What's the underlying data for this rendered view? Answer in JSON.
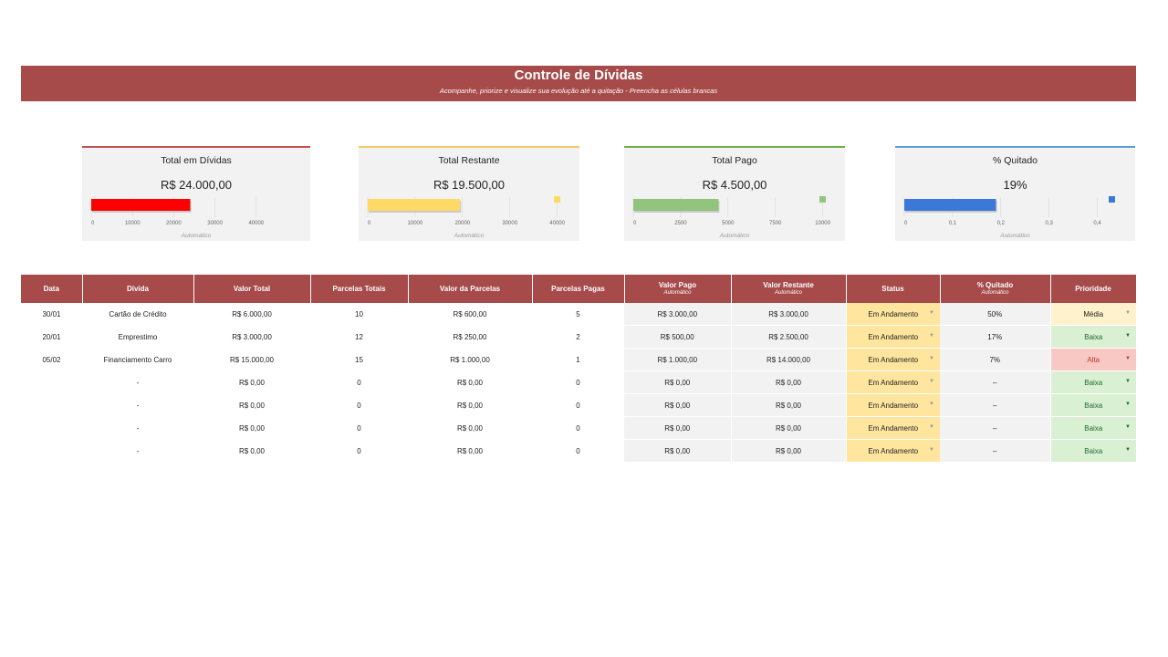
{
  "header": {
    "title": "Controle de Dívidas",
    "subtitle": "Acompanhe, priorize e visualize sua evolução até a quitação - Preencha as células brancas"
  },
  "cards": [
    {
      "title": "Total em Dívidas",
      "value": "R$ 24.000,00",
      "accent": "#c0504d",
      "bar_color": "#ff0000",
      "ticks": [
        "0",
        "10000",
        "20000",
        "30000",
        "40000"
      ],
      "axis_max": 50000,
      "bar_value": 24000,
      "legend_marker": false,
      "foot": "Automático"
    },
    {
      "title": "Total Restante",
      "value": "R$ 19.500,00",
      "accent": "#f5c76b",
      "bar_color": "#ffd966",
      "ticks": [
        "0",
        "10000",
        "20000",
        "30000",
        "40000"
      ],
      "axis_max": 42000,
      "bar_value": 19500,
      "legend_marker": true,
      "foot": "Automático"
    },
    {
      "title": "Total Pago",
      "value": "R$ 4.500,00",
      "accent": "#70ad47",
      "bar_color": "#93c47d",
      "ticks": [
        "0",
        "2500",
        "5000",
        "7500",
        "10000"
      ],
      "axis_max": 10500,
      "bar_value": 4500,
      "legend_marker": true,
      "foot": "Automático"
    },
    {
      "title": "% Quitado",
      "value": "19%",
      "accent": "#5b9bd5",
      "bar_color": "#3c78d8",
      "ticks": [
        "0",
        "0,1",
        "0,2",
        "0,3",
        "0,4"
      ],
      "axis_max": 0.45,
      "bar_value": 0.19,
      "legend_marker": true,
      "foot": "Automático"
    }
  ],
  "table": {
    "columns": [
      {
        "label": "Data"
      },
      {
        "label": "Dívida"
      },
      {
        "label": "Valor Total"
      },
      {
        "label": "Parcelas Totais"
      },
      {
        "label": "Valor da Parcelas"
      },
      {
        "label": "Parcelas Pagas"
      },
      {
        "label": "Valor Pago",
        "sub": "Automático"
      },
      {
        "label": "Valor Restante",
        "sub": "Automático"
      },
      {
        "label": "Status"
      },
      {
        "label": "% Quitado",
        "sub": "Automático"
      },
      {
        "label": "Prioridade"
      }
    ],
    "rows": [
      {
        "data": "30/01",
        "divida": "Cartão de Crédito",
        "valor_total": "R$ 6.000,00",
        "parcelas_totais": "10",
        "valor_parcela": "R$ 600,00",
        "parcelas_pagas": "5",
        "valor_pago": "R$ 3.000,00",
        "valor_restante": "R$ 3.000,00",
        "status": "Em Andamento",
        "quitado": "50%",
        "prioridade": "Média",
        "prio_class": "Media"
      },
      {
        "data": "20/01",
        "divida": "Emprestimo",
        "valor_total": "R$ 3.000,00",
        "parcelas_totais": "12",
        "valor_parcela": "R$ 250,00",
        "parcelas_pagas": "2",
        "valor_pago": "R$ 500,00",
        "valor_restante": "R$ 2.500,00",
        "status": "Em Andamento",
        "quitado": "17%",
        "prioridade": "Baixa",
        "prio_class": "Baixa"
      },
      {
        "data": "05/02",
        "divida": "Financiamento Carro",
        "valor_total": "R$ 15.000,00",
        "parcelas_totais": "15",
        "valor_parcela": "R$ 1.000,00",
        "parcelas_pagas": "1",
        "valor_pago": "R$ 1.000,00",
        "valor_restante": "R$ 14.000,00",
        "status": "Em Andamento",
        "quitado": "7%",
        "prioridade": "Alta",
        "prio_class": "Alta"
      },
      {
        "data": "",
        "divida": "-",
        "valor_total": "R$ 0,00",
        "parcelas_totais": "0",
        "valor_parcela": "R$ 0,00",
        "parcelas_pagas": "0",
        "valor_pago": "R$ 0,00",
        "valor_restante": "R$ 0,00",
        "status": "Em Andamento",
        "quitado": "–",
        "prioridade": "Baixa",
        "prio_class": "Baixa"
      },
      {
        "data": "",
        "divida": "-",
        "valor_total": "R$ 0,00",
        "parcelas_totais": "0",
        "valor_parcela": "R$ 0,00",
        "parcelas_pagas": "0",
        "valor_pago": "R$ 0,00",
        "valor_restante": "R$ 0,00",
        "status": "Em Andamento",
        "quitado": "–",
        "prioridade": "Baixa",
        "prio_class": "Baixa"
      },
      {
        "data": "",
        "divida": "-",
        "valor_total": "R$ 0,00",
        "parcelas_totais": "0",
        "valor_parcela": "R$ 0,00",
        "parcelas_pagas": "0",
        "valor_pago": "R$ 0,00",
        "valor_restante": "R$ 0,00",
        "status": "Em Andamento",
        "quitado": "–",
        "prioridade": "Baixa",
        "prio_class": "Baixa"
      },
      {
        "data": "",
        "divida": "-",
        "valor_total": "R$ 0,00",
        "parcelas_totais": "0",
        "valor_parcela": "R$ 0,00",
        "parcelas_pagas": "0",
        "valor_pago": "R$ 0,00",
        "valor_restante": "R$ 0,00",
        "status": "Em Andamento",
        "quitado": "–",
        "prioridade": "Baixa",
        "prio_class": "Baixa"
      }
    ]
  }
}
